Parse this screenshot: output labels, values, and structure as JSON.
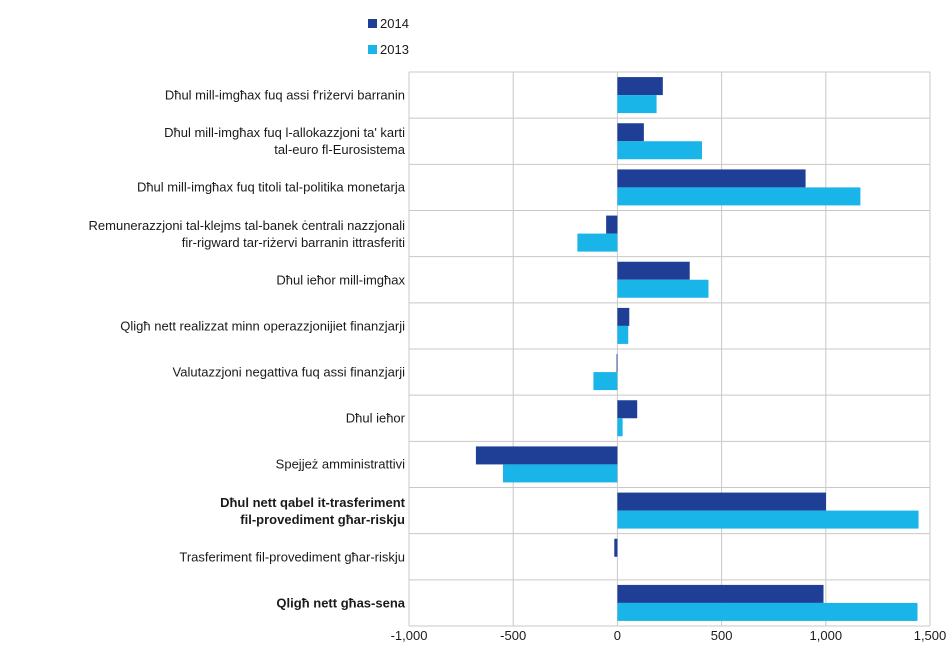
{
  "chart_data": {
    "type": "bar",
    "orientation": "horizontal",
    "categories": [
      {
        "lines": [
          "Dħul mill-imgħax fuq assi f'riżervi barranin"
        ],
        "bold": false
      },
      {
        "lines": [
          "Dħul mill-imgħax fuq l-allokazzjoni ta' karti",
          "tal-euro fl-Eurosistema"
        ],
        "bold": false
      },
      {
        "lines": [
          "Dħul mill-imgħax fuq titoli tal-politika monetarja"
        ],
        "bold": false
      },
      {
        "lines": [
          "Remunerazzjoni tal-klejms tal-banek ċentrali nazzjonali",
          "fir-rigward tar-riżervi barranin ittrasferiti"
        ],
        "bold": false
      },
      {
        "lines": [
          "Dħul ieħor mill-imgħax"
        ],
        "bold": false
      },
      {
        "lines": [
          "Qligħ nett realizzat minn operazzjonijiet finanzjarji"
        ],
        "bold": false
      },
      {
        "lines": [
          "Valutazzjoni negattiva fuq assi finanzjarji"
        ],
        "bold": false
      },
      {
        "lines": [
          "Dħul ieħor"
        ],
        "bold": false
      },
      {
        "lines": [
          "Spejjeż amministrattivi"
        ],
        "bold": false
      },
      {
        "lines": [
          "Dħul nett qabel it-trasferiment",
          "fil-provediment għar-riskju"
        ],
        "bold": true
      },
      {
        "lines": [
          "Trasferiment fil-provediment għar-riskju"
        ],
        "bold": false
      },
      {
        "lines": [
          "Qligħ nett għas-sena"
        ],
        "bold": true
      }
    ],
    "series": [
      {
        "name": "2014",
        "color": "#1f3e96",
        "values": [
          218,
          127,
          903,
          -54,
          347,
          57,
          -4,
          95,
          -679,
          1001,
          -15,
          989
        ]
      },
      {
        "name": "2013",
        "color": "#19b4e8",
        "values": [
          188,
          406,
          1166,
          -192,
          437,
          52,
          -115,
          25,
          -549,
          1445,
          0,
          1440
        ]
      }
    ],
    "xlim": [
      -1000,
      1500
    ],
    "xticks": [
      -1000,
      -500,
      0,
      500,
      1000,
      1500
    ],
    "xtick_labels": [
      "-1,000",
      "-500",
      "0",
      "500",
      "1,000",
      "1,500"
    ],
    "grid": true,
    "legend_position": "top"
  }
}
